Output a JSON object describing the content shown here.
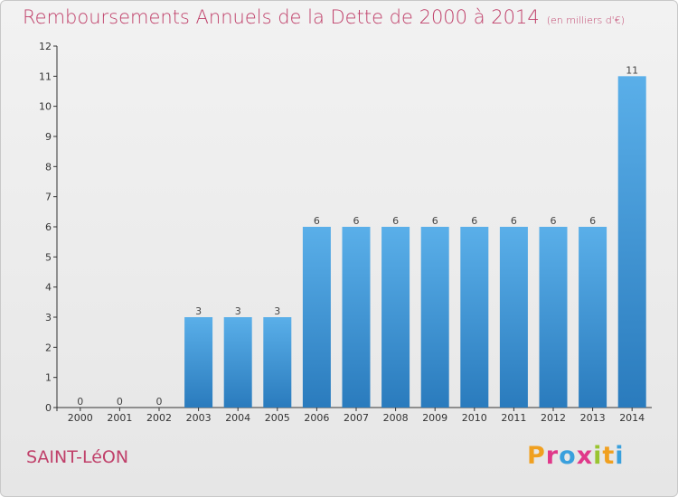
{
  "title": "Remboursements Annuels de la Dette de 2000 à 2014",
  "subtitle": "(en milliers d'€)",
  "commune": "SAINT-LéON",
  "logo": [
    "P",
    "r",
    "o",
    "x",
    "i",
    "t",
    "i"
  ],
  "colors": {
    "title": "#c0406a",
    "bar_top": "#5aafe9",
    "bar_bottom": "#2a7bbd",
    "logo": [
      "#f0a020",
      "#e0388a",
      "#3aa0dd",
      "#e0388a",
      "#9ac430",
      "#f0a020",
      "#3aa0dd"
    ]
  },
  "chart_data": {
    "type": "bar",
    "title": "Remboursements Annuels de la Dette de 2000 à 2014",
    "subtitle": "(en milliers d'€)",
    "categories": [
      "2000",
      "2001",
      "2002",
      "2003",
      "2004",
      "2005",
      "2006",
      "2007",
      "2008",
      "2009",
      "2010",
      "2011",
      "2012",
      "2013",
      "2014"
    ],
    "values": [
      0,
      0,
      0,
      3,
      3,
      3,
      6,
      6,
      6,
      6,
      6,
      6,
      6,
      6,
      11
    ],
    "xlabel": "",
    "ylabel": "",
    "ylim": [
      0,
      12
    ],
    "yticks": [
      0,
      1,
      2,
      3,
      4,
      5,
      6,
      7,
      8,
      9,
      10,
      11,
      12
    ],
    "grid": false,
    "legend": "none"
  }
}
